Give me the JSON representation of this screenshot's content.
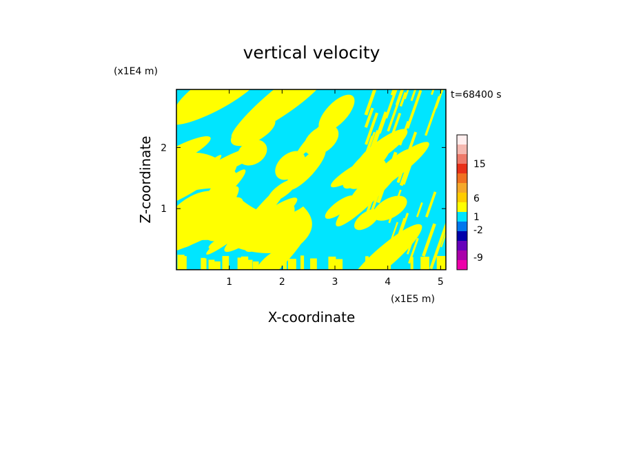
{
  "chart_data": {
    "type": "heatmap",
    "title": "vertical velocity",
    "xlabel": "X-coordinate",
    "ylabel": "Z-coordinate",
    "x_unit": "(x1E5 m)",
    "y_unit": "(x1E4 m)",
    "time_label": "t=68400 s",
    "xlim": [
      0,
      5.1
    ],
    "ylim": [
      0,
      2.95
    ],
    "x_ticks": [
      "1",
      "2",
      "3",
      "4",
      "5"
    ],
    "y_ticks": [
      "1",
      "2"
    ],
    "colorbar": {
      "levels": [
        {
          "color": "#ffeeee"
        },
        {
          "color": "#f5b8b0"
        },
        {
          "color": "#ee7a6a"
        },
        {
          "color": "#e83018"
        },
        {
          "color": "#f07020"
        },
        {
          "color": "#f5a82a"
        },
        {
          "color": "#ffcc00"
        },
        {
          "color": "#ffff00"
        },
        {
          "color": "#00e5ff"
        },
        {
          "color": "#0077ee"
        },
        {
          "color": "#0000aa"
        },
        {
          "color": "#6600bb"
        },
        {
          "color": "#aa00aa"
        },
        {
          "color": "#ee00aa"
        }
      ],
      "labels": [
        "15",
        "6",
        "1",
        "-2",
        "-9"
      ]
    },
    "field_colors": {
      "positive": "#ffff00",
      "negative": "#00e5ff"
    }
  }
}
